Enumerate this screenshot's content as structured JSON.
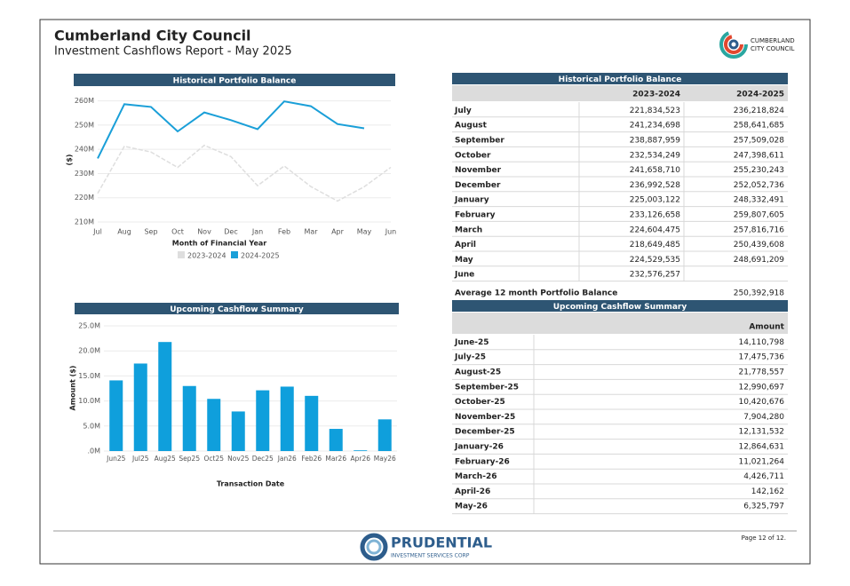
{
  "header": {
    "title": "Cumberland City Council",
    "subtitle": "Investment Cashflows Report - May 2025"
  },
  "logo": {
    "line1": "CUMBERLAND",
    "line2": "CITY COUNCIL"
  },
  "chart_data": [
    {
      "type": "line",
      "title": "Historical Portfolio Balance",
      "xlabel": "Month of Financial Year",
      "ylabel": "($)",
      "categories": [
        "Jul",
        "Aug",
        "Sep",
        "Oct",
        "Nov",
        "Dec",
        "Jan",
        "Feb",
        "Mar",
        "Apr",
        "May",
        "Jun"
      ],
      "series": [
        {
          "name": "2023-2024",
          "color": "#dedede",
          "values": [
            221834523,
            241234698,
            238887959,
            232534249,
            241658710,
            236992528,
            225003122,
            233126658,
            224604475,
            218649485,
            224529535,
            232576257
          ]
        },
        {
          "name": "2024-2025",
          "color": "#1a9fd8",
          "values": [
            236218824,
            258641685,
            257509028,
            247398611,
            255230243,
            252052736,
            248332491,
            259807605,
            257816716,
            250439608,
            248691209,
            null
          ]
        }
      ],
      "ylim": [
        210000000,
        265000000
      ],
      "yticks": [
        {
          "value": 210000000,
          "label": "210M"
        },
        {
          "value": 220000000,
          "label": "220M"
        },
        {
          "value": 230000000,
          "label": "230M"
        },
        {
          "value": 240000000,
          "label": "240M"
        },
        {
          "value": 250000000,
          "label": "250M"
        },
        {
          "value": 260000000,
          "label": "260M"
        }
      ],
      "grid": true,
      "legend": "bottom"
    },
    {
      "type": "bar",
      "title": "Upcoming Cashflow Summary",
      "xlabel": "Transaction Date",
      "ylabel": "Amount ($)",
      "categories": [
        "Jun25",
        "Jul25",
        "Aug25",
        "Sep25",
        "Oct25",
        "Nov25",
        "Dec25",
        "Jan26",
        "Feb26",
        "Mar26",
        "Apr26",
        "May26"
      ],
      "values": [
        14110798,
        17475736,
        21778557,
        12990697,
        10420676,
        7904280,
        12131532,
        12864631,
        11021264,
        4426711,
        142162,
        6325797
      ],
      "color": "#0f9fdc",
      "ylim": [
        0,
        26600000
      ],
      "yticks": [
        {
          "value": 0,
          "label": ".0M"
        },
        {
          "value": 5000000,
          "label": "5.0M"
        },
        {
          "value": 10000000,
          "label": "10.0M"
        },
        {
          "value": 15000000,
          "label": "15.0M"
        },
        {
          "value": 20000000,
          "label": "20.0M"
        },
        {
          "value": 25000000,
          "label": "25.0M"
        }
      ],
      "grid": true
    }
  ],
  "historical_table": {
    "title": "Historical Portfolio Balance",
    "columns": [
      "2023-2024",
      "2024-2025"
    ],
    "rows": [
      [
        "July",
        "221,834,523",
        "236,218,824"
      ],
      [
        "August",
        "241,234,698",
        "258,641,685"
      ],
      [
        "September",
        "238,887,959",
        "257,509,028"
      ],
      [
        "October",
        "232,534,249",
        "247,398,611"
      ],
      [
        "November",
        "241,658,710",
        "255,230,243"
      ],
      [
        "December",
        "236,992,528",
        "252,052,736"
      ],
      [
        "January",
        "225,003,122",
        "248,332,491"
      ],
      [
        "February",
        "233,126,658",
        "259,807,605"
      ],
      [
        "March",
        "224,604,475",
        "257,816,716"
      ],
      [
        "April",
        "218,649,485",
        "250,439,608"
      ],
      [
        "May",
        "224,529,535",
        "248,691,209"
      ],
      [
        "June",
        "232,576,257",
        null
      ]
    ],
    "average": {
      "label": "Average 12 month Portfolio Balance",
      "value": "250,392,918"
    }
  },
  "cashflow_table": {
    "title": "Upcoming Cashflow Summary",
    "column": "Amount",
    "rows": [
      [
        "June-25",
        "14,110,798"
      ],
      [
        "July-25",
        "17,475,736"
      ],
      [
        "August-25",
        "21,778,557"
      ],
      [
        "September-25",
        "12,990,697"
      ],
      [
        "October-25",
        "10,420,676"
      ],
      [
        "November-25",
        "7,904,280"
      ],
      [
        "December-25",
        "12,131,532"
      ],
      [
        "January-26",
        "12,864,631"
      ],
      [
        "February-26",
        "11,021,264"
      ],
      [
        "March-26",
        "4,426,711"
      ],
      [
        "April-26",
        "142,162"
      ],
      [
        "May-26",
        "6,325,797"
      ]
    ]
  },
  "footer": {
    "brand": "PRUDENTIAL",
    "tagline": "INVESTMENT SERVICES CORP",
    "page": "Page 12 of 12."
  }
}
